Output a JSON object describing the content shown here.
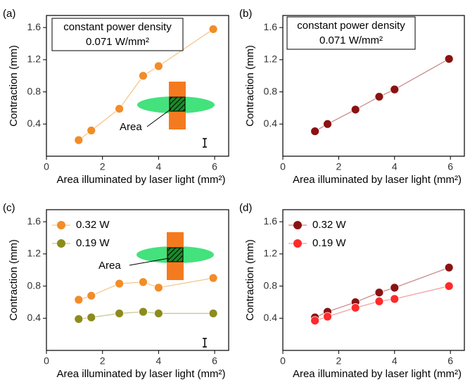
{
  "chart_data": [
    {
      "type": "line",
      "panel_label": "(a)",
      "xlabel": "Area illuminated by laser light (mm²)",
      "ylabel": "Contraction (mm)",
      "x": [
        1.15,
        1.6,
        2.6,
        3.45,
        4.0,
        5.95
      ],
      "xlim": [
        0,
        6.5
      ],
      "ylim": [
        0,
        1.75
      ],
      "xticks": [
        0,
        2,
        4,
        6
      ],
      "yticks": [
        0.4,
        0.8,
        1.2,
        1.6
      ],
      "series": [
        {
          "name": null,
          "color": "#f28c28",
          "line_color": "#f5c68a",
          "values": [
            0.2,
            0.32,
            0.59,
            1.0,
            1.12,
            1.58
          ]
        }
      ],
      "annotations": [
        "constant power density",
        "0.071 W/mm²",
        "Area"
      ]
    },
    {
      "type": "line",
      "panel_label": "(b)",
      "xlabel": "Area illuminated by laser light (mm²)",
      "ylabel": "Contraction (mm)",
      "x": [
        1.15,
        1.6,
        2.6,
        3.45,
        4.0,
        5.95
      ],
      "xlim": [
        0,
        6.5
      ],
      "ylim": [
        0,
        1.75
      ],
      "xticks": [
        0,
        2,
        4,
        6
      ],
      "yticks": [
        0.4,
        0.8,
        1.2,
        1.6
      ],
      "series": [
        {
          "name": null,
          "color": "#8b1212",
          "line_color": "#c98a8a",
          "values": [
            0.31,
            0.4,
            0.58,
            0.74,
            0.83,
            1.21
          ]
        }
      ],
      "annotations": [
        "constant power density",
        "0.071 W/mm²"
      ]
    },
    {
      "type": "line",
      "panel_label": "(c)",
      "xlabel": "Area illuminated by laser light (mm²)",
      "ylabel": "Contraction (mm)",
      "x": [
        1.15,
        1.6,
        2.6,
        3.45,
        4.0,
        5.95
      ],
      "xlim": [
        0,
        6.5
      ],
      "ylim": [
        0,
        1.75
      ],
      "xticks": [
        0,
        2,
        4,
        6
      ],
      "yticks": [
        0.4,
        0.8,
        1.2,
        1.6
      ],
      "series": [
        {
          "name": "0.32 W",
          "color": "#f28c28",
          "line_color": "#f5c68a",
          "values": [
            0.63,
            0.68,
            0.83,
            0.85,
            0.78,
            0.9
          ]
        },
        {
          "name": "0.19 W",
          "color": "#8c8c1c",
          "line_color": "#c8c89a",
          "values": [
            0.39,
            0.41,
            0.46,
            0.48,
            0.46,
            0.46
          ]
        }
      ],
      "annotations": [
        "Area"
      ]
    },
    {
      "type": "line",
      "panel_label": "(d)",
      "xlabel": "Area illuminated by laser light (mm²)",
      "ylabel": "Contraction (mm)",
      "x": [
        1.15,
        1.6,
        2.6,
        3.45,
        4.0,
        5.95
      ],
      "xlim": [
        0,
        6.5
      ],
      "ylim": [
        0,
        1.75
      ],
      "xticks": [
        0,
        2,
        4,
        6
      ],
      "yticks": [
        0.4,
        0.8,
        1.2,
        1.6
      ],
      "series": [
        {
          "name": "0.32 W",
          "color": "#8b1212",
          "line_color": "#c98a8a",
          "values": [
            0.41,
            0.48,
            0.6,
            0.72,
            0.78,
            1.03
          ]
        },
        {
          "name": "0.19 W",
          "color": "#ff2a2a",
          "line_color": "#f5a0a0",
          "values": [
            0.37,
            0.42,
            0.53,
            0.61,
            0.64,
            0.8
          ]
        }
      ]
    }
  ]
}
